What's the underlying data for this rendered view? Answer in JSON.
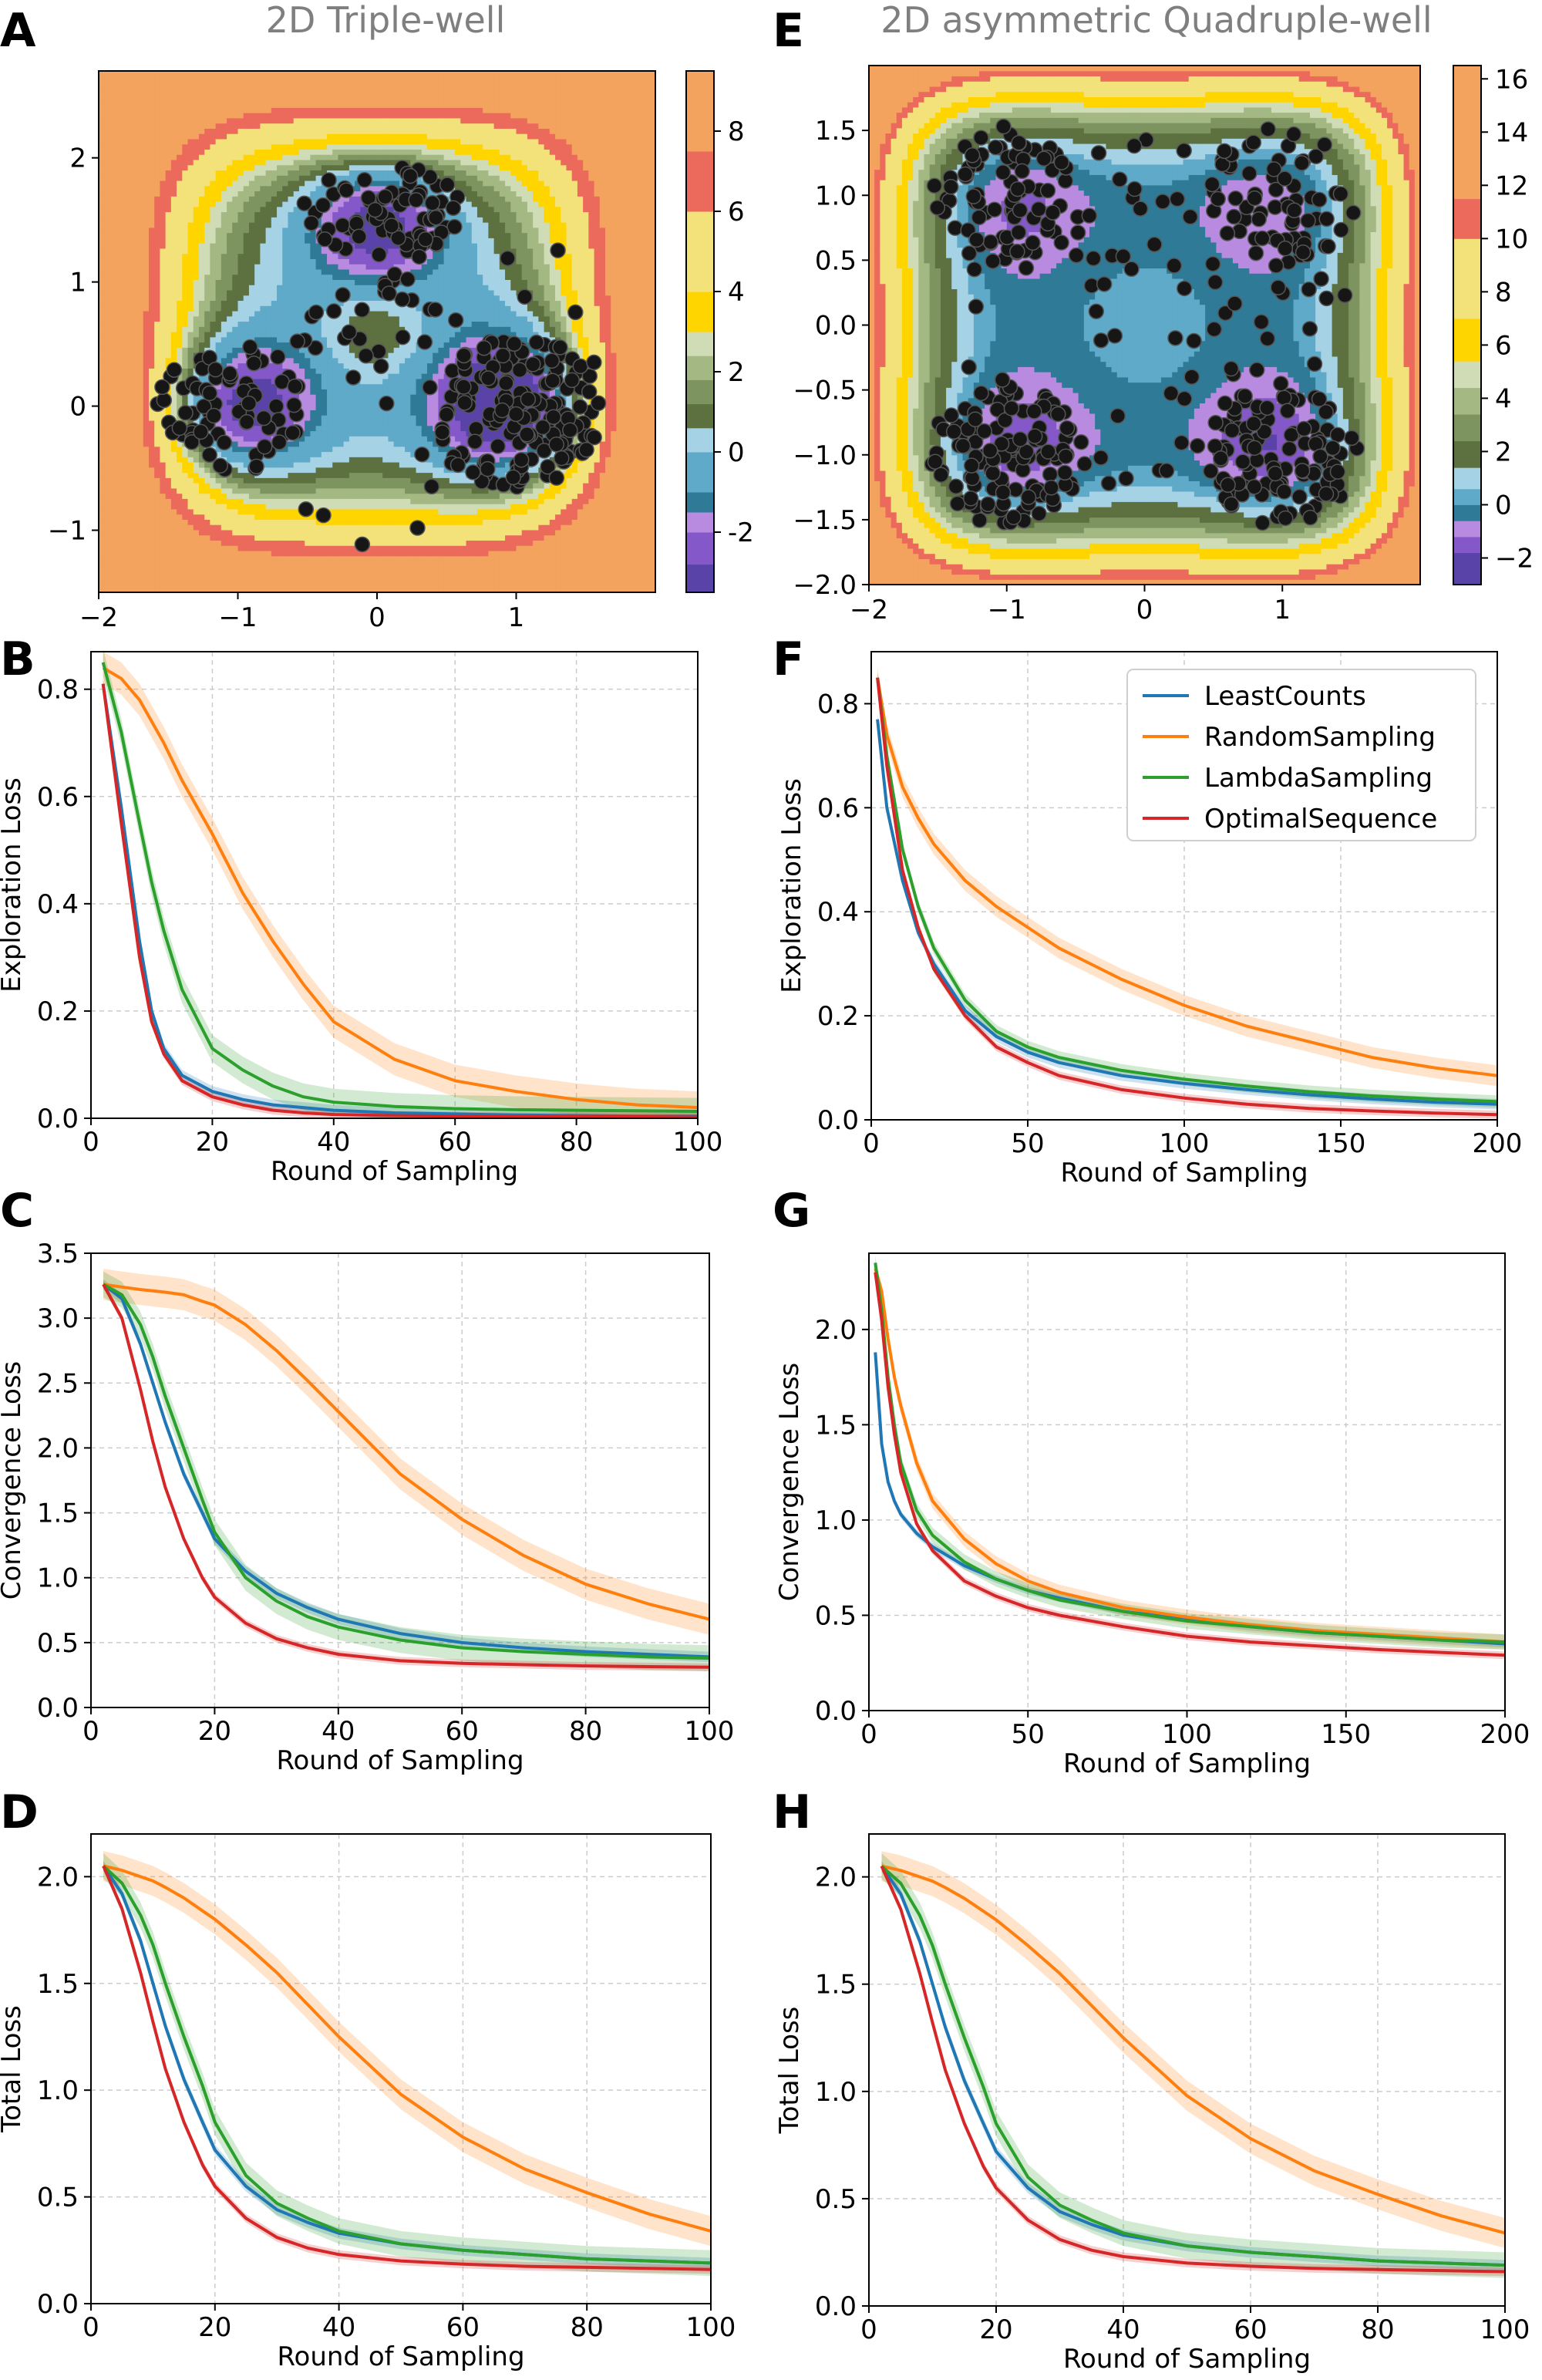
{
  "figure": {
    "panel_letters": [
      "A",
      "B",
      "C",
      "D",
      "E",
      "F",
      "G",
      "H"
    ],
    "series_colors": {
      "LeastCounts": "#1f77b4",
      "RandomSampling": "#ff7f0e",
      "LambdaSampling": "#2ca02c",
      "OptimalSequence": "#d62728"
    },
    "legend": [
      "LeastCounts",
      "RandomSampling",
      "LambdaSampling",
      "OptimalSequence"
    ]
  },
  "chart_data": [
    {
      "id": "A",
      "type": "heatmap",
      "title": "2D Triple-well",
      "xlim": [
        -2,
        2
      ],
      "ylim": [
        -1.5,
        2.7
      ],
      "xticks": [
        "−2",
        "−1",
        "0",
        "1"
      ],
      "xtick_values": [
        -2,
        -1,
        0,
        1
      ],
      "yticks": [
        "−1",
        "0",
        "1",
        "2"
      ],
      "ytick_values": [
        -1,
        0,
        1,
        2
      ],
      "colorbar": {
        "ticks": [
          "-2",
          "0",
          "2",
          "4",
          "6",
          "8"
        ],
        "tick_values": [
          -2,
          0,
          2,
          4,
          6,
          8
        ],
        "range": [
          -3.5,
          9.5
        ]
      },
      "well_centers": [
        [
          -1.0,
          0.0
        ],
        [
          1.0,
          0.0
        ],
        [
          0.0,
          1.5
        ]
      ],
      "scatter_note": "sampled points (black)"
    },
    {
      "id": "E",
      "type": "heatmap",
      "title": "2D asymmetric Quadruple-well",
      "xlim": [
        -2,
        2
      ],
      "ylim": [
        -2,
        2
      ],
      "xticks": [
        "−2",
        "−1",
        "0",
        "1"
      ],
      "xtick_values": [
        -2,
        -1,
        0,
        1
      ],
      "yticks": [
        "−2.0",
        "−1.5",
        "−1.0",
        "−0.5",
        "0.0",
        "0.5",
        "1.0",
        "1.5"
      ],
      "ytick_values": [
        -2,
        -1.5,
        -1,
        -0.5,
        0,
        0.5,
        1,
        1.5
      ],
      "colorbar": {
        "ticks": [
          "−2",
          "0",
          "2",
          "4",
          "6",
          "8",
          "10",
          "12",
          "14",
          "16"
        ],
        "tick_values": [
          -2,
          0,
          2,
          4,
          6,
          8,
          10,
          12,
          14,
          16
        ],
        "range": [
          -3,
          16.5
        ]
      },
      "well_centers": [
        [
          -1.0,
          1.0
        ],
        [
          1.0,
          1.0
        ],
        [
          -1.0,
          -1.0
        ],
        [
          1.0,
          -1.0
        ]
      ]
    },
    {
      "id": "B",
      "type": "line",
      "xlabel": "Round of Sampling",
      "ylabel": "Exploration Loss",
      "xlim": [
        0,
        100
      ],
      "ylim": [
        0,
        0.87
      ],
      "xticks": [
        "0",
        "20",
        "40",
        "60",
        "80",
        "100"
      ],
      "xtick_values": [
        0,
        20,
        40,
        60,
        80,
        100
      ],
      "yticks": [
        "0.0",
        "0.2",
        "0.4",
        "0.6",
        "0.8"
      ],
      "ytick_values": [
        0,
        0.2,
        0.4,
        0.6,
        0.8
      ],
      "x": [
        2,
        5,
        8,
        10,
        12,
        15,
        20,
        25,
        30,
        35,
        40,
        50,
        60,
        70,
        80,
        90,
        100
      ],
      "series": [
        {
          "name": "LeastCounts",
          "values": [
            0.81,
            0.58,
            0.33,
            0.2,
            0.13,
            0.08,
            0.05,
            0.035,
            0.025,
            0.02,
            0.015,
            0.01,
            0.008,
            0.006,
            0.005,
            0.004,
            0.004
          ],
          "band": 0.01
        },
        {
          "name": "RandomSampling",
          "values": [
            0.84,
            0.82,
            0.78,
            0.74,
            0.7,
            0.63,
            0.53,
            0.42,
            0.33,
            0.25,
            0.18,
            0.11,
            0.07,
            0.05,
            0.035,
            0.025,
            0.02
          ],
          "band": 0.03
        },
        {
          "name": "LambdaSampling",
          "values": [
            0.85,
            0.72,
            0.55,
            0.44,
            0.35,
            0.24,
            0.13,
            0.09,
            0.06,
            0.04,
            0.03,
            0.022,
            0.018,
            0.016,
            0.015,
            0.014,
            0.013
          ],
          "band": 0.025
        },
        {
          "name": "OptimalSequence",
          "values": [
            0.81,
            0.55,
            0.3,
            0.18,
            0.12,
            0.07,
            0.04,
            0.025,
            0.015,
            0.01,
            0.007,
            0.005,
            0.004,
            0.003,
            0.003,
            0.003,
            0.002
          ],
          "band": 0.008
        }
      ]
    },
    {
      "id": "F",
      "type": "line",
      "xlabel": "Round of Sampling",
      "ylabel": "Exploration Loss",
      "xlim": [
        0,
        200
      ],
      "ylim": [
        0,
        0.9
      ],
      "xticks": [
        "0",
        "50",
        "100",
        "150",
        "200"
      ],
      "xtick_values": [
        0,
        50,
        100,
        150,
        200
      ],
      "yticks": [
        "0.0",
        "0.2",
        "0.4",
        "0.6",
        "0.8"
      ],
      "ytick_values": [
        0,
        0.2,
        0.4,
        0.6,
        0.8
      ],
      "legend_position": "top-right",
      "x": [
        2,
        5,
        10,
        15,
        20,
        30,
        40,
        50,
        60,
        80,
        100,
        120,
        140,
        160,
        180,
        200
      ],
      "series": [
        {
          "name": "LeastCounts",
          "values": [
            0.77,
            0.6,
            0.46,
            0.36,
            0.3,
            0.21,
            0.16,
            0.13,
            0.11,
            0.085,
            0.07,
            0.058,
            0.048,
            0.04,
            0.034,
            0.03
          ],
          "band": 0.01
        },
        {
          "name": "RandomSampling",
          "values": [
            0.85,
            0.74,
            0.64,
            0.58,
            0.53,
            0.46,
            0.41,
            0.37,
            0.33,
            0.27,
            0.22,
            0.18,
            0.15,
            0.12,
            0.1,
            0.085
          ],
          "band": 0.02
        },
        {
          "name": "LambdaSampling",
          "values": [
            0.85,
            0.7,
            0.52,
            0.41,
            0.33,
            0.23,
            0.17,
            0.14,
            0.12,
            0.095,
            0.078,
            0.065,
            0.054,
            0.046,
            0.04,
            0.035
          ],
          "band": 0.012
        },
        {
          "name": "OptimalSequence",
          "values": [
            0.85,
            0.68,
            0.48,
            0.37,
            0.29,
            0.2,
            0.14,
            0.11,
            0.085,
            0.058,
            0.042,
            0.03,
            0.022,
            0.017,
            0.013,
            0.01
          ],
          "band": 0.008
        }
      ]
    },
    {
      "id": "C",
      "type": "line",
      "xlabel": "Round of Sampling",
      "ylabel": "Convergence Loss",
      "xlim": [
        0,
        100
      ],
      "ylim": [
        0,
        3.5
      ],
      "xticks": [
        "0",
        "20",
        "40",
        "60",
        "80",
        "100"
      ],
      "xtick_values": [
        0,
        20,
        40,
        60,
        80,
        100
      ],
      "yticks": [
        "0.0",
        "0.5",
        "1.0",
        "1.5",
        "2.0",
        "2.5",
        "3.0",
        "3.5"
      ],
      "ytick_values": [
        0,
        0.5,
        1,
        1.5,
        2,
        2.5,
        3,
        3.5
      ],
      "x": [
        2,
        5,
        8,
        10,
        12,
        15,
        18,
        20,
        25,
        30,
        35,
        40,
        50,
        60,
        70,
        80,
        90,
        100
      ],
      "series": [
        {
          "name": "LeastCounts",
          "values": [
            3.26,
            3.15,
            2.8,
            2.5,
            2.2,
            1.8,
            1.5,
            1.3,
            1.05,
            0.88,
            0.77,
            0.68,
            0.57,
            0.5,
            0.46,
            0.43,
            0.41,
            0.39
          ],
          "band": 0.04
        },
        {
          "name": "RandomSampling",
          "values": [
            3.26,
            3.24,
            3.22,
            3.21,
            3.2,
            3.18,
            3.13,
            3.1,
            2.95,
            2.75,
            2.52,
            2.28,
            1.8,
            1.45,
            1.17,
            0.95,
            0.8,
            0.68
          ],
          "band": 0.12
        },
        {
          "name": "LambdaSampling",
          "values": [
            3.26,
            3.18,
            2.95,
            2.7,
            2.4,
            2.0,
            1.6,
            1.35,
            1.0,
            0.82,
            0.7,
            0.62,
            0.52,
            0.46,
            0.43,
            0.41,
            0.39,
            0.38
          ],
          "band": 0.1
        },
        {
          "name": "OptimalSequence",
          "values": [
            3.26,
            3.0,
            2.45,
            2.05,
            1.7,
            1.3,
            1.0,
            0.85,
            0.65,
            0.53,
            0.46,
            0.41,
            0.36,
            0.34,
            0.33,
            0.32,
            0.315,
            0.31
          ],
          "band": 0.03
        }
      ]
    },
    {
      "id": "G",
      "type": "line",
      "xlabel": "Round of Sampling",
      "ylabel": "Convergence Loss",
      "xlim": [
        0,
        200
      ],
      "ylim": [
        0,
        2.4
      ],
      "xticks": [
        "0",
        "50",
        "100",
        "150",
        "200"
      ],
      "xtick_values": [
        0,
        50,
        100,
        150,
        200
      ],
      "yticks": [
        "0.0",
        "0.5",
        "1.0",
        "1.5",
        "2.0"
      ],
      "ytick_values": [
        0,
        0.5,
        1,
        1.5,
        2
      ],
      "x": [
        2,
        4,
        6,
        8,
        10,
        15,
        20,
        30,
        40,
        50,
        60,
        80,
        100,
        120,
        140,
        160,
        180,
        200
      ],
      "series": [
        {
          "name": "LeastCounts",
          "values": [
            1.88,
            1.4,
            1.2,
            1.1,
            1.03,
            0.93,
            0.86,
            0.76,
            0.69,
            0.63,
            0.59,
            0.52,
            0.48,
            0.44,
            0.41,
            0.39,
            0.37,
            0.35
          ],
          "band": 0.02
        },
        {
          "name": "RandomSampling",
          "values": [
            2.32,
            2.2,
            1.95,
            1.75,
            1.6,
            1.3,
            1.1,
            0.9,
            0.77,
            0.68,
            0.62,
            0.54,
            0.49,
            0.45,
            0.42,
            0.4,
            0.38,
            0.36
          ],
          "band": 0.04
        },
        {
          "name": "LambdaSampling",
          "values": [
            2.35,
            2.1,
            1.75,
            1.5,
            1.3,
            1.05,
            0.92,
            0.78,
            0.69,
            0.63,
            0.58,
            0.52,
            0.47,
            0.44,
            0.41,
            0.39,
            0.37,
            0.36
          ],
          "band": 0.04
        },
        {
          "name": "OptimalSequence",
          "values": [
            2.3,
            2.05,
            1.7,
            1.45,
            1.25,
            0.98,
            0.84,
            0.68,
            0.6,
            0.54,
            0.5,
            0.44,
            0.39,
            0.36,
            0.34,
            0.32,
            0.305,
            0.29
          ],
          "band": 0.02
        }
      ]
    },
    {
      "id": "D",
      "type": "line",
      "xlabel": "Round of Sampling",
      "ylabel": "Total Loss",
      "xlim": [
        0,
        100
      ],
      "ylim": [
        0,
        2.2
      ],
      "xticks": [
        "0",
        "20",
        "40",
        "60",
        "80",
        "100"
      ],
      "xtick_values": [
        0,
        20,
        40,
        60,
        80,
        100
      ],
      "yticks": [
        "0.0",
        "0.5",
        "1.0",
        "1.5",
        "2.0"
      ],
      "ytick_values": [
        0,
        0.5,
        1,
        1.5,
        2
      ],
      "x": [
        2,
        5,
        8,
        10,
        12,
        15,
        18,
        20,
        25,
        30,
        35,
        40,
        50,
        60,
        70,
        80,
        90,
        100
      ],
      "series": [
        {
          "name": "LeastCounts",
          "values": [
            2.05,
            1.92,
            1.7,
            1.5,
            1.3,
            1.05,
            0.85,
            0.72,
            0.55,
            0.44,
            0.38,
            0.33,
            0.28,
            0.25,
            0.23,
            0.21,
            0.2,
            0.19
          ],
          "band": 0.025
        },
        {
          "name": "RandomSampling",
          "values": [
            2.05,
            2.03,
            2.0,
            1.98,
            1.95,
            1.9,
            1.84,
            1.8,
            1.68,
            1.55,
            1.4,
            1.25,
            0.98,
            0.78,
            0.63,
            0.52,
            0.42,
            0.34
          ],
          "band": 0.07
        },
        {
          "name": "LambdaSampling",
          "values": [
            2.05,
            1.97,
            1.82,
            1.68,
            1.5,
            1.25,
            1.02,
            0.85,
            0.6,
            0.47,
            0.4,
            0.34,
            0.28,
            0.25,
            0.23,
            0.21,
            0.2,
            0.19
          ],
          "band": 0.06
        },
        {
          "name": "OptimalSequence",
          "values": [
            2.05,
            1.85,
            1.55,
            1.32,
            1.1,
            0.85,
            0.65,
            0.55,
            0.4,
            0.31,
            0.26,
            0.23,
            0.2,
            0.185,
            0.175,
            0.17,
            0.165,
            0.16
          ],
          "band": 0.02
        }
      ]
    },
    {
      "id": "H",
      "type": "line",
      "xlabel": "Round of Sampling",
      "ylabel": "Total Loss",
      "xlim": [
        0,
        100
      ],
      "ylim": [
        0,
        2.2
      ],
      "xticks": [
        "0",
        "20",
        "40",
        "60",
        "80",
        "100"
      ],
      "xtick_values": [
        0,
        20,
        40,
        60,
        80,
        100
      ],
      "yticks": [
        "0.0",
        "0.5",
        "1.0",
        "1.5",
        "2.0"
      ],
      "ytick_values": [
        0,
        0.5,
        1,
        1.5,
        2
      ],
      "x": [
        2,
        5,
        8,
        10,
        12,
        15,
        18,
        20,
        25,
        30,
        35,
        40,
        50,
        60,
        70,
        80,
        90,
        100
      ],
      "series": [
        {
          "name": "LeastCounts",
          "values": [
            2.05,
            1.92,
            1.7,
            1.5,
            1.3,
            1.05,
            0.85,
            0.72,
            0.55,
            0.44,
            0.38,
            0.33,
            0.28,
            0.25,
            0.23,
            0.21,
            0.2,
            0.19
          ],
          "band": 0.025
        },
        {
          "name": "RandomSampling",
          "values": [
            2.05,
            2.03,
            2.0,
            1.98,
            1.95,
            1.9,
            1.84,
            1.8,
            1.68,
            1.55,
            1.4,
            1.25,
            0.98,
            0.78,
            0.63,
            0.52,
            0.42,
            0.34
          ],
          "band": 0.07
        },
        {
          "name": "LambdaSampling",
          "values": [
            2.05,
            1.97,
            1.82,
            1.68,
            1.5,
            1.25,
            1.02,
            0.85,
            0.6,
            0.47,
            0.4,
            0.34,
            0.28,
            0.25,
            0.23,
            0.21,
            0.2,
            0.19
          ],
          "band": 0.06
        },
        {
          "name": "OptimalSequence",
          "values": [
            2.05,
            1.85,
            1.55,
            1.32,
            1.1,
            0.85,
            0.65,
            0.55,
            0.4,
            0.31,
            0.26,
            0.23,
            0.2,
            0.185,
            0.175,
            0.17,
            0.165,
            0.16
          ],
          "band": 0.02
        }
      ]
    }
  ]
}
